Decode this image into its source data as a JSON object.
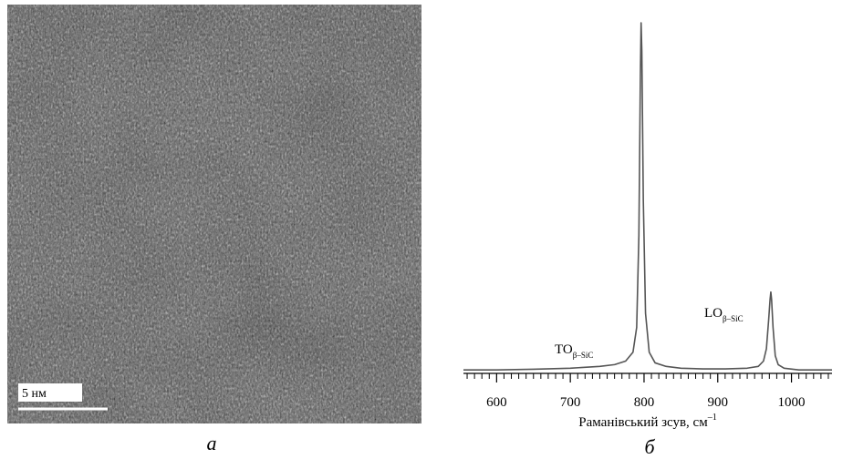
{
  "image_panel": {
    "scale_bar_label": "5 нм",
    "caption": "а"
  },
  "chart_data": {
    "type": "line",
    "caption": "б",
    "x_label": {
      "text": "Раманівський зсув, см",
      "sup": "–1"
    },
    "x": [
      555,
      600,
      650,
      700,
      740,
      760,
      775,
      785,
      790,
      793,
      795,
      796,
      797,
      799,
      802,
      807,
      815,
      830,
      850,
      880,
      910,
      940,
      955,
      962,
      966,
      969,
      971,
      972,
      973,
      975,
      978,
      982,
      990,
      1010,
      1030,
      1055
    ],
    "values": [
      2,
      2,
      2.2,
      2.5,
      3,
      3.5,
      4.5,
      7,
      14,
      40,
      85,
      100,
      92,
      50,
      18,
      7,
      4,
      3,
      2.5,
      2.3,
      2.3,
      2.5,
      3,
      4.5,
      8,
      16,
      22,
      24,
      22,
      14,
      6,
      3.5,
      2.5,
      2,
      2,
      2
    ],
    "color": "#555555",
    "xlim": [
      555,
      1055
    ],
    "xticks": [
      600,
      700,
      800,
      900,
      1000
    ],
    "xminorticks": [
      560,
      570,
      580,
      590,
      610,
      620,
      630,
      640,
      650,
      660,
      670,
      680,
      690,
      710,
      720,
      730,
      740,
      750,
      760,
      770,
      780,
      790,
      810,
      820,
      830,
      840,
      850,
      860,
      870,
      880,
      890,
      910,
      920,
      930,
      940,
      950,
      960,
      970,
      980,
      990,
      1010,
      1020,
      1030,
      1040,
      1050
    ],
    "annotations": [
      {
        "text": "TO",
        "sub": "β–SiC"
      },
      {
        "text": "LO",
        "sub": "β–SiC"
      }
    ]
  }
}
